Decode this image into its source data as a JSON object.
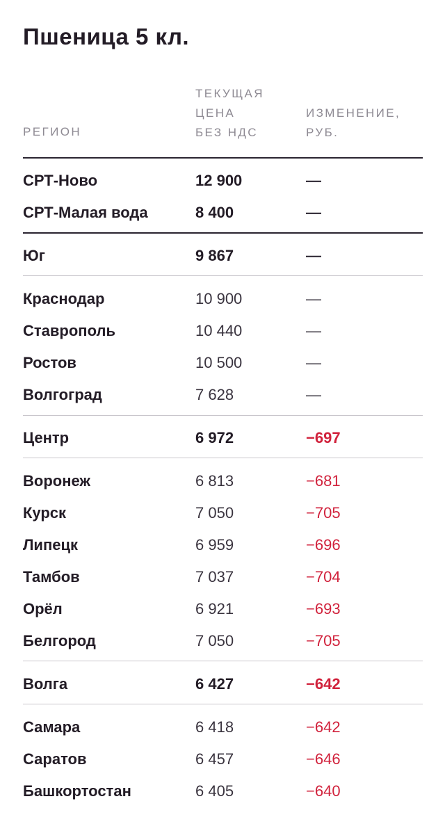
{
  "title": "Пшеница 5 кл.",
  "headers": {
    "region": [
      "РЕГИОН"
    ],
    "price": [
      "ТЕКУЩАЯ",
      "ЦЕНА",
      "БЕЗ НДС"
    ],
    "change": [
      "ИЗМЕНЕНИЕ,",
      "РУБ."
    ]
  },
  "rows": [
    {
      "region": "СРТ-Ново",
      "price": "12 900",
      "change": "—",
      "bold": true,
      "negative": false
    },
    {
      "region": "СРТ-Малая вода",
      "price": "8 400",
      "change": "—",
      "bold": true,
      "negative": false
    },
    {
      "region": "Юг",
      "price": "9 867",
      "change": "—",
      "bold": true,
      "negative": false
    },
    {
      "region": "Краснодар",
      "price": "10 900",
      "change": "—",
      "bold": false,
      "negative": false
    },
    {
      "region": "Ставрополь",
      "price": "10 440",
      "change": "—",
      "bold": false,
      "negative": false
    },
    {
      "region": "Ростов",
      "price": "10 500",
      "change": "—",
      "bold": false,
      "negative": false
    },
    {
      "region": "Волгоград",
      "price": "7 628",
      "change": "—",
      "bold": false,
      "negative": false
    },
    {
      "region": "Центр",
      "price": "6 972",
      "change": "−697",
      "bold": true,
      "negative": true
    },
    {
      "region": "Воронеж",
      "price": "6 813",
      "change": "−681",
      "bold": false,
      "negative": true
    },
    {
      "region": "Курск",
      "price": "7 050",
      "change": "−705",
      "bold": false,
      "negative": true
    },
    {
      "region": "Липецк",
      "price": "6 959",
      "change": "−696",
      "bold": false,
      "negative": true
    },
    {
      "region": "Тамбов",
      "price": "7 037",
      "change": "−704",
      "bold": false,
      "negative": true
    },
    {
      "region": "Орёл",
      "price": "6 921",
      "change": "−693",
      "bold": false,
      "negative": true
    },
    {
      "region": "Белгород",
      "price": "7 050",
      "change": "−705",
      "bold": false,
      "negative": true
    },
    {
      "region": "Волга",
      "price": "6 427",
      "change": "−642",
      "bold": true,
      "negative": true
    },
    {
      "region": "Самара",
      "price": "6 418",
      "change": "−642",
      "bold": false,
      "negative": true
    },
    {
      "region": "Саратов",
      "price": "6 457",
      "change": "−646",
      "bold": false,
      "negative": true
    },
    {
      "region": "Башкортостан",
      "price": "6 405",
      "change": "−640",
      "bold": false,
      "negative": true
    }
  ],
  "colors": {
    "text": "#231c26",
    "header": "#8e8a93",
    "negative": "#d1223c",
    "rule_dark": "#2a2430",
    "rule_light": "#c9c6cc"
  }
}
